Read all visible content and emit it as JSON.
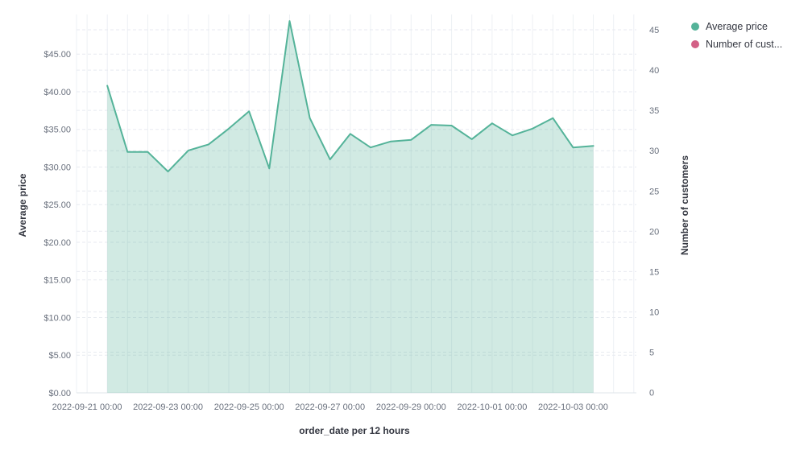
{
  "legend": {
    "position": "top-right",
    "items": [
      {
        "label": "Average price",
        "color": "#54b399"
      },
      {
        "label": "Number of cust...",
        "color": "#d36086"
      }
    ]
  },
  "chart_data": {
    "type": "area",
    "title": "",
    "xlabel": "order_date per 12 hours",
    "ylabel_left": "Average price",
    "ylabel_right": "Number of customers",
    "x": [
      "2022-09-21 12:00",
      "2022-09-22 00:00",
      "2022-09-22 12:00",
      "2022-09-23 00:00",
      "2022-09-23 12:00",
      "2022-09-24 00:00",
      "2022-09-24 12:00",
      "2022-09-25 00:00",
      "2022-09-25 12:00",
      "2022-09-26 00:00",
      "2022-09-26 12:00",
      "2022-09-27 00:00",
      "2022-09-27 12:00",
      "2022-09-28 00:00",
      "2022-09-28 12:00",
      "2022-09-29 00:00",
      "2022-09-29 12:00",
      "2022-09-30 00:00",
      "2022-09-30 12:00",
      "2022-10-01 00:00",
      "2022-10-01 12:00",
      "2022-10-02 00:00",
      "2022-10-02 12:00",
      "2022-10-03 00:00",
      "2022-10-03 12:00"
    ],
    "series": [
      {
        "name": "Average price",
        "axis": "left",
        "color": "#54b399",
        "fill_opacity": 0.27,
        "values": [
          40.8,
          32.0,
          32.0,
          29.4,
          32.2,
          33.0,
          35.1,
          37.4,
          29.8,
          49.4,
          36.5,
          31.0,
          34.4,
          32.6,
          33.4,
          33.6,
          35.6,
          35.5,
          33.7,
          35.8,
          34.2,
          35.1,
          36.5,
          32.6,
          32.8
        ]
      },
      {
        "name": "Number of customers",
        "axis": "right",
        "color": "#d36086",
        "values": []
      }
    ],
    "x_axis": {
      "title": "order_date per 12 hours",
      "tick_labels": [
        "2022-09-21 00:00",
        "2022-09-23 00:00",
        "2022-09-25 00:00",
        "2022-09-27 00:00",
        "2022-09-29 00:00",
        "2022-10-01 00:00",
        "2022-10-03 00:00"
      ],
      "bucket_interval": "12 hours"
    },
    "y_axis_left": {
      "title": "Average price",
      "min": 0,
      "max": 50,
      "tick_step": 5,
      "tick_labels": [
        "$0.00",
        "$5.00",
        "$10.00",
        "$15.00",
        "$20.00",
        "$25.00",
        "$30.00",
        "$35.00",
        "$40.00",
        "$45.00"
      ]
    },
    "y_axis_right": {
      "title": "Number of customers",
      "min": 0,
      "max": 47,
      "tick_step": 5,
      "tick_labels": [
        "0",
        "5",
        "10",
        "15",
        "20",
        "25",
        "30",
        "35",
        "40",
        "45"
      ]
    },
    "grid": {
      "horizontal": "dashed",
      "vertical": "solid"
    },
    "colors": {
      "tick_label": "#69707d",
      "axis_title": "#343741",
      "grid_vertical": "#edf0f4",
      "grid_horizontal": "#e7eaf0",
      "baseline": "#dfe4ea"
    }
  }
}
